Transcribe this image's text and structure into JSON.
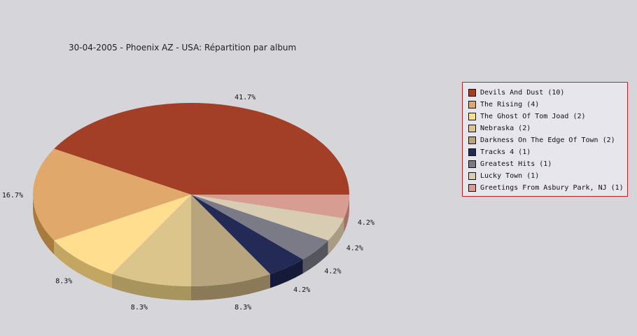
{
  "chart_data": {
    "type": "pie",
    "title": "30-04-2005 - Phoenix AZ - USA:  Répartition par album",
    "legend_position": "right",
    "slices": [
      {
        "label": "Devils And Dust (10)",
        "value": 10,
        "percent_label": "41.7%",
        "color": "#a33f27",
        "side_color": "#7a0c00"
      },
      {
        "label": "The Rising (4)",
        "value": 4,
        "percent_label": "16.7%",
        "color": "#e0a96b",
        "side_color": "#a87a3d"
      },
      {
        "label": "The Ghost Of Tom Joad (2)",
        "value": 2,
        "percent_label": "8.3%",
        "color": "#ffdf8f",
        "side_color": "#c2a661"
      },
      {
        "label": "Nebraska (2)",
        "value": 2,
        "percent_label": "8.3%",
        "color": "#dcc58a",
        "side_color": "#a8955d"
      },
      {
        "label": "Darkness On The Edge Of Town (2)",
        "value": 2,
        "percent_label": "8.3%",
        "color": "#b8a57e",
        "side_color": "#8a7a58"
      },
      {
        "label": "Tracks 4 (1)",
        "value": 1,
        "percent_label": "4.2%",
        "color": "#222a55",
        "side_color": "#141a38"
      },
      {
        "label": "Greatest Hits (1)",
        "value": 1,
        "percent_label": "4.2%",
        "color": "#7b7b87",
        "side_color": "#55555f"
      },
      {
        "label": "Lucky Town (1)",
        "value": 1,
        "percent_label": "4.2%",
        "color": "#d8ccb2",
        "side_color": "#a89c84"
      },
      {
        "label": "Greetings From Asbury Park, NJ (1)",
        "value": 1,
        "percent_label": "4.2%",
        "color": "#d79c92",
        "side_color": "#a56f66"
      }
    ]
  }
}
